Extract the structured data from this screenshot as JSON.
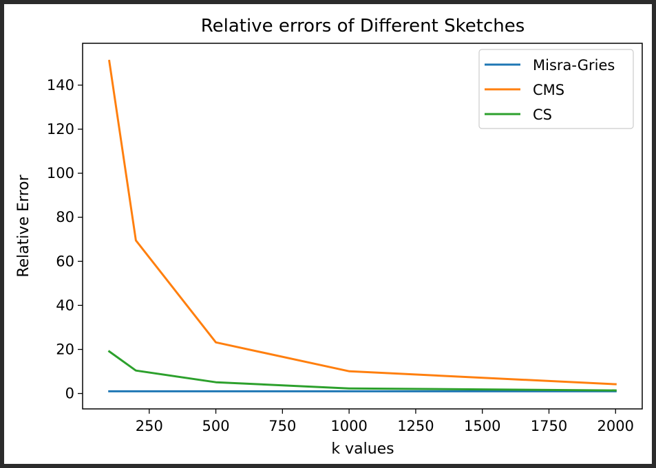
{
  "chart_data": {
    "type": "line",
    "title": "Relative errors of Different Sketches",
    "xlabel": "k values",
    "ylabel": "Relative Error",
    "x": [
      100,
      200,
      500,
      1000,
      2000
    ],
    "xlim": [
      0,
      2100
    ],
    "ylim": [
      -7,
      159
    ],
    "xticks": [
      250,
      500,
      750,
      1000,
      1250,
      1500,
      1750,
      2000
    ],
    "yticks": [
      0,
      20,
      40,
      60,
      80,
      100,
      120,
      140
    ],
    "grid": false,
    "legend_position": "top-right",
    "series": [
      {
        "name": "Misra-Gries",
        "color": "#1f77b4",
        "values": [
          1.0,
          1.0,
          1.0,
          1.0,
          1.0
        ]
      },
      {
        "name": "CMS",
        "color": "#ff7f0e",
        "values": [
          151,
          69.5,
          23.2,
          10.1,
          4.2
        ]
      },
      {
        "name": "CS",
        "color": "#2ca02c",
        "values": [
          19.1,
          10.4,
          5.1,
          2.3,
          1.4
        ]
      }
    ]
  }
}
